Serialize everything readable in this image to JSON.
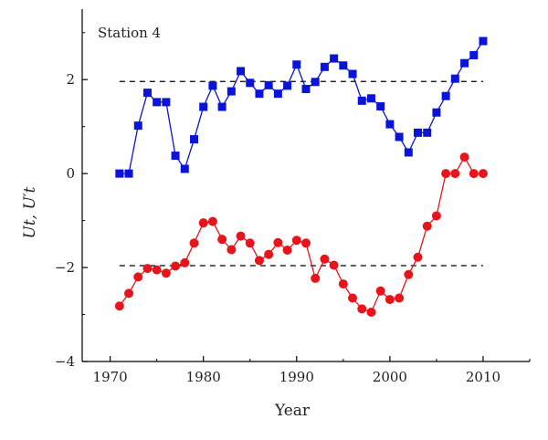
{
  "chart_data": {
    "type": "line",
    "annotation": "Station 4",
    "xlabel": "Year",
    "ylabel": "Ut, U′t",
    "xlim": [
      1967,
      2015
    ],
    "ylim": [
      -4,
      3.5
    ],
    "x_ticks": [
      1970,
      1980,
      1990,
      2000,
      2010
    ],
    "y_ticks": [
      -4,
      -2,
      0,
      2
    ],
    "grid": false,
    "legend": "none",
    "reference_lines": [
      {
        "y": 1.96,
        "x_range": [
          1971,
          2010
        ],
        "style": "dashed",
        "color": "#000000"
      },
      {
        "y": -1.96,
        "x_range": [
          1971,
          2010
        ],
        "style": "dashed",
        "color": "#000000"
      }
    ],
    "series": [
      {
        "marker": "square",
        "color": "#0a14d8",
        "points": [
          [
            1971,
            0.0
          ],
          [
            1972,
            0.0
          ],
          [
            1973,
            1.02
          ],
          [
            1974,
            1.72
          ],
          [
            1975,
            1.52
          ],
          [
            1976,
            1.52
          ],
          [
            1977,
            0.38
          ],
          [
            1978,
            0.1
          ],
          [
            1979,
            0.73
          ],
          [
            1980,
            1.42
          ],
          [
            1981,
            1.87
          ],
          [
            1982,
            1.42
          ],
          [
            1983,
            1.75
          ],
          [
            1984,
            2.18
          ],
          [
            1985,
            1.93
          ],
          [
            1986,
            1.7
          ],
          [
            1987,
            1.88
          ],
          [
            1988,
            1.7
          ],
          [
            1989,
            1.87
          ],
          [
            1990,
            2.32
          ],
          [
            1991,
            1.8
          ],
          [
            1992,
            1.95
          ],
          [
            1993,
            2.27
          ],
          [
            1994,
            2.45
          ],
          [
            1995,
            2.3
          ],
          [
            1996,
            2.12
          ],
          [
            1997,
            1.55
          ],
          [
            1998,
            1.6
          ],
          [
            1999,
            1.43
          ],
          [
            2000,
            1.05
          ],
          [
            2001,
            0.78
          ],
          [
            2002,
            0.45
          ],
          [
            2003,
            0.87
          ],
          [
            2004,
            0.87
          ],
          [
            2005,
            1.3
          ],
          [
            2006,
            1.65
          ],
          [
            2007,
            2.02
          ],
          [
            2008,
            2.35
          ],
          [
            2009,
            2.52
          ],
          [
            2010,
            2.82
          ]
        ]
      },
      {
        "marker": "circle",
        "color": "#e8141c",
        "points": [
          [
            1971,
            -2.82
          ],
          [
            1972,
            -2.55
          ],
          [
            1973,
            -2.2
          ],
          [
            1974,
            -2.02
          ],
          [
            1975,
            -2.05
          ],
          [
            1976,
            -2.12
          ],
          [
            1977,
            -1.97
          ],
          [
            1978,
            -1.9
          ],
          [
            1979,
            -1.48
          ],
          [
            1980,
            -1.05
          ],
          [
            1981,
            -1.02
          ],
          [
            1982,
            -1.4
          ],
          [
            1983,
            -1.62
          ],
          [
            1984,
            -1.33
          ],
          [
            1985,
            -1.48
          ],
          [
            1986,
            -1.85
          ],
          [
            1987,
            -1.72
          ],
          [
            1988,
            -1.47
          ],
          [
            1989,
            -1.63
          ],
          [
            1990,
            -1.42
          ],
          [
            1991,
            -1.48
          ],
          [
            1992,
            -2.23
          ],
          [
            1993,
            -1.82
          ],
          [
            1994,
            -1.95
          ],
          [
            1995,
            -2.35
          ],
          [
            1996,
            -2.65
          ],
          [
            1997,
            -2.88
          ],
          [
            1998,
            -2.95
          ],
          [
            1999,
            -2.5
          ],
          [
            2000,
            -2.68
          ],
          [
            2001,
            -2.65
          ],
          [
            2002,
            -2.15
          ],
          [
            2003,
            -1.78
          ],
          [
            2004,
            -1.12
          ],
          [
            2005,
            -0.9
          ],
          [
            2006,
            0.0
          ],
          [
            2007,
            0.0
          ],
          [
            2008,
            0.35
          ],
          [
            2009,
            0.0
          ],
          [
            2010,
            0.0
          ]
        ]
      }
    ]
  }
}
